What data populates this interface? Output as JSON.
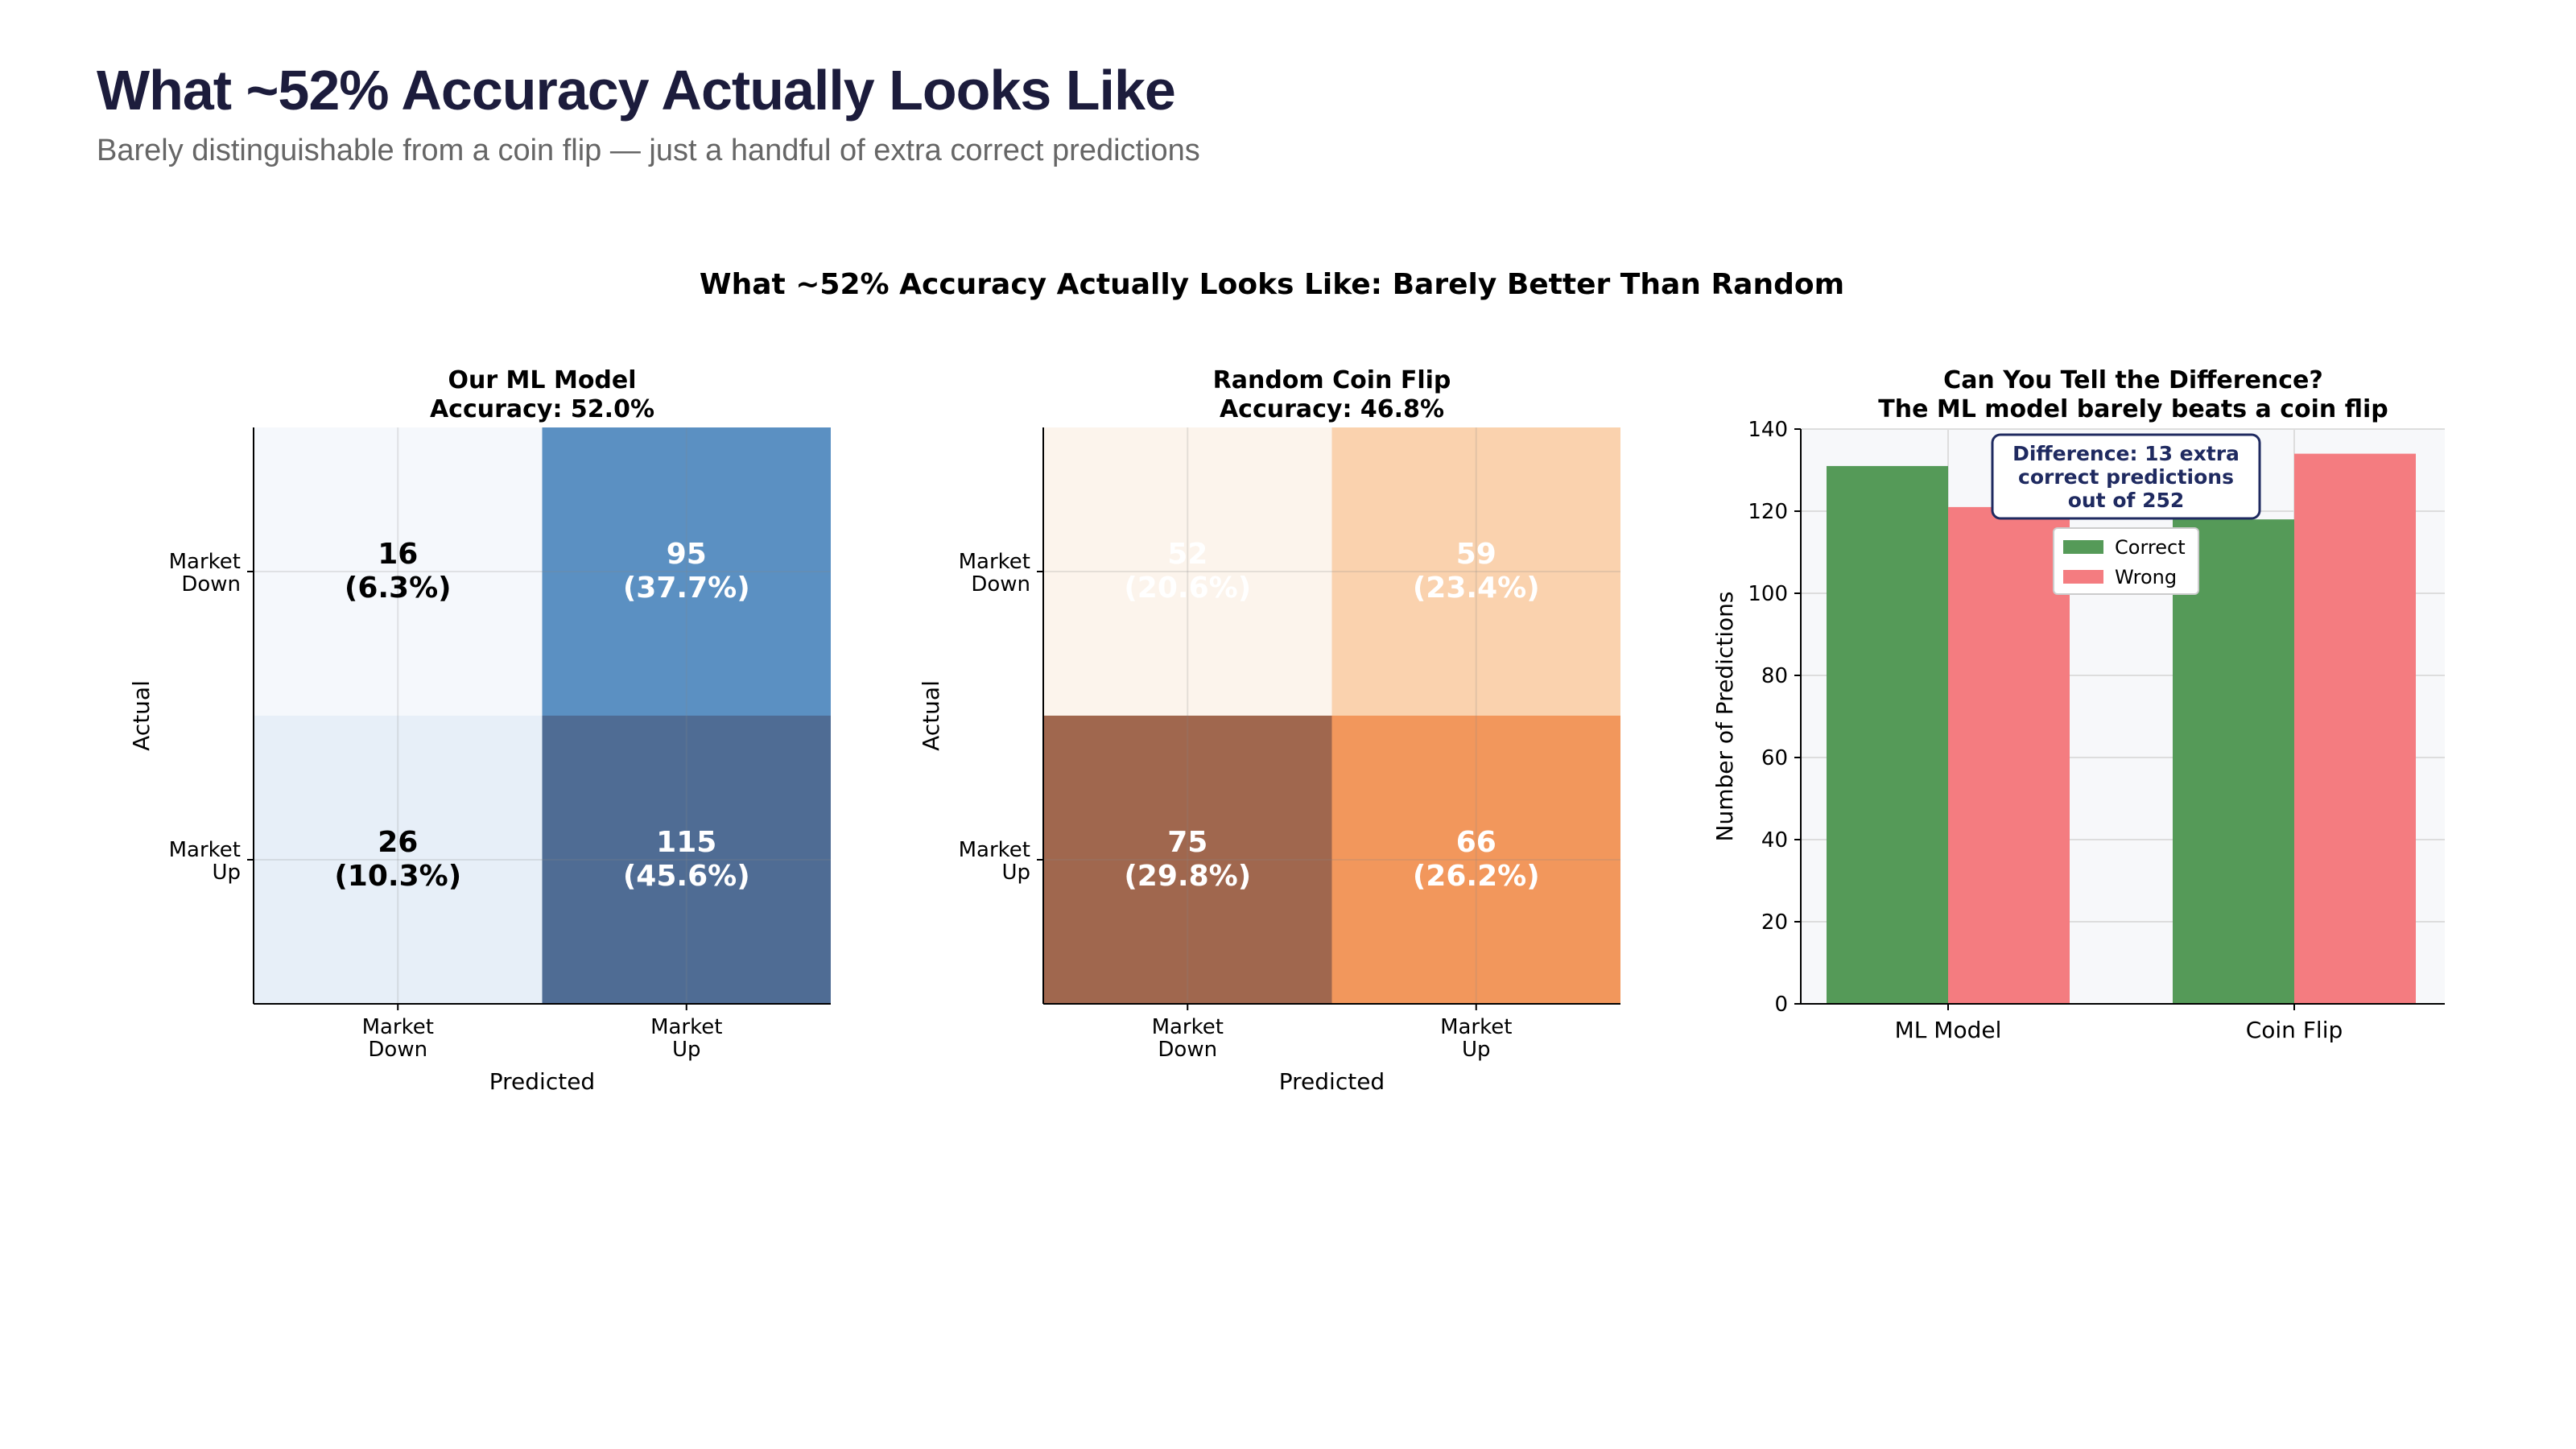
{
  "header": {
    "title": "What ~52% Accuracy Actually Looks Like",
    "subtitle": "Barely distinguishable from a coin flip — just a handful of extra correct predictions"
  },
  "chart_data": [
    {
      "type": "heatmap",
      "suptitle": "What ~52% Accuracy Actually Looks Like: Barely Better Than Random",
      "title": [
        "Our ML Model",
        "Accuracy: 52.0%"
      ],
      "xlabel": "Predicted",
      "ylabel": "Actual",
      "x_ticks": [
        [
          "Market",
          "Down"
        ],
        [
          "Market",
          "Up"
        ]
      ],
      "y_ticks": [
        [
          "Market",
          "Down"
        ],
        [
          "Market",
          "Up"
        ]
      ],
      "values": [
        [
          16,
          95
        ],
        [
          26,
          115
        ]
      ],
      "labels": [
        [
          "16",
          "(6.3%)",
          "95",
          "(37.7%)"
        ],
        [
          "26",
          "(10.3%)",
          "115",
          "(45.6%)"
        ]
      ],
      "colors": [
        [
          "#f5f8fc",
          "#5b90c2"
        ],
        [
          "#e7eff8",
          "#4f6c94"
        ]
      ],
      "text_colors": [
        [
          "#000000",
          "#ffffff"
        ],
        [
          "#000000",
          "#ffffff"
        ]
      ],
      "colormap": "Blues"
    },
    {
      "type": "heatmap",
      "title": [
        "Random Coin Flip",
        "Accuracy: 46.8%"
      ],
      "xlabel": "Predicted",
      "ylabel": "Actual",
      "x_ticks": [
        [
          "Market",
          "Down"
        ],
        [
          "Market",
          "Up"
        ]
      ],
      "y_ticks": [
        [
          "Market",
          "Down"
        ],
        [
          "Market",
          "Up"
        ]
      ],
      "values": [
        [
          52,
          59
        ],
        [
          75,
          66
        ]
      ],
      "labels": [
        [
          "52",
          "(20.6%)",
          "59",
          "(23.4%)"
        ],
        [
          "75",
          "(29.8%)",
          "66",
          "(26.2%)"
        ]
      ],
      "colors": [
        [
          "#fcf4ec",
          "#fad2ae"
        ],
        [
          "#a0674e",
          "#f2975c"
        ]
      ],
      "text_colors": [
        [
          "#ffffff",
          "#ffffff"
        ],
        [
          "#ffffff",
          "#ffffff"
        ]
      ],
      "colormap": "Oranges"
    },
    {
      "type": "bar",
      "title": [
        "Can You Tell the Difference?",
        "The ML model barely beats a coin flip"
      ],
      "ylabel": "Number of Predictions",
      "categories": [
        "ML Model",
        "Coin Flip"
      ],
      "series": [
        {
          "name": "Correct",
          "values": [
            131,
            118
          ],
          "color": "#559a58"
        },
        {
          "name": "Wrong",
          "values": [
            121,
            134
          ],
          "color": "#f47c80"
        }
      ],
      "ylim": [
        0,
        140
      ],
      "yticks": [
        0,
        20,
        40,
        60,
        80,
        100,
        120,
        140
      ],
      "grid": true,
      "legend": "top-center",
      "annotation": [
        "Difference: 13 extra",
        "correct predictions",
        "out of 252"
      ],
      "annotation_color": "#1f2a60"
    }
  ]
}
